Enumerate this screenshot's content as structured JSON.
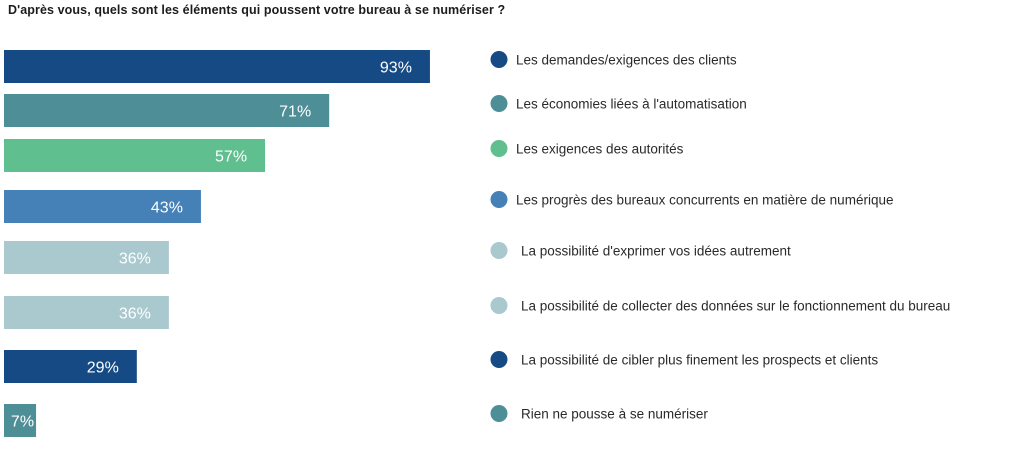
{
  "chart_data": {
    "type": "bar",
    "orientation": "horizontal",
    "title": "D'après vous, quels sont les éléments qui poussent votre bureau à se numériser ?",
    "categories": [
      "Les demandes/exigences des clients",
      "Les économies liées à l'automatisation",
      "Les exigences des autorités",
      "Les progrès des bureaux concurrents en matière de numérique",
      "La possibilité d'exprimer vos idées autrement",
      "La possibilité de collecter des données sur le fonctionnement du bureau",
      "La possibilité de cibler plus finement les prospects et clients",
      "Rien ne pousse à se numériser"
    ],
    "values": [
      93,
      71,
      57,
      43,
      36,
      36,
      29,
      7
    ],
    "value_labels": [
      "93%",
      "71%",
      "57%",
      "43%",
      "36%",
      "36%",
      "29%",
      "7%"
    ],
    "colors": [
      "#154a85",
      "#4d8e97",
      "#5fbf8f",
      "#4580b6",
      "#a9c9cf",
      "#a9c9cf",
      "#154a85",
      "#4d8e97"
    ],
    "unit": "%",
    "xlim": [
      0,
      100
    ],
    "legend_position": "right",
    "grid": false
  }
}
